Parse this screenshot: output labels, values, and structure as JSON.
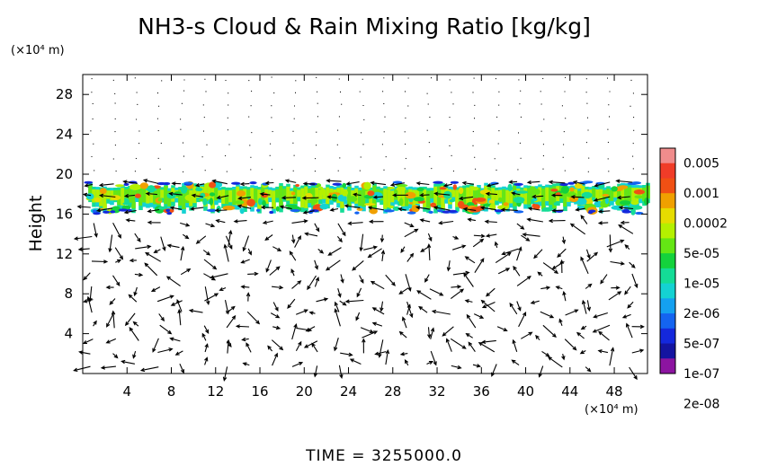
{
  "chart_data": {
    "type": "heatmap",
    "title": "NH3-s Cloud & Rain Mixing Ratio [kg/kg]",
    "ylabel": "Height",
    "y_unit": "(×10⁴ m)",
    "x_unit": "(×10⁴ m)",
    "xlim": [
      0,
      51
    ],
    "ylim": [
      0,
      30
    ],
    "xticks": [
      "4",
      "8",
      "12",
      "16",
      "20",
      "24",
      "28",
      "32",
      "36",
      "40",
      "44",
      "48"
    ],
    "xtick_values": [
      4,
      8,
      12,
      16,
      20,
      24,
      28,
      32,
      36,
      40,
      44,
      48
    ],
    "yticks": [
      "4",
      "8",
      "12",
      "16",
      "20",
      "24",
      "28"
    ],
    "ytick_values": [
      4,
      8,
      12,
      16,
      20,
      24,
      28
    ],
    "colorbar": {
      "labels": [
        "0.005",
        "0.001",
        "0.0002",
        "5e-05",
        "1e-05",
        "2e-06",
        "5e-07",
        "1e-07",
        "2e-08"
      ],
      "colors": [
        "#f08c8c",
        "#f03c28",
        "#f05014",
        "#f0a000",
        "#e6dc00",
        "#b4f000",
        "#64e614",
        "#14d23c",
        "#14dc96",
        "#14d2d2",
        "#14a0f0",
        "#1464f0",
        "#1428dc",
        "#1414a0",
        "#8c14a0"
      ]
    },
    "cloud_layer": {
      "height_range": [
        15.5,
        19.5
      ],
      "x_range": [
        0.5,
        51
      ]
    },
    "overlay": "wind vector arrows"
  },
  "footer": {
    "time_label": "TIME  =  3255000.0"
  }
}
